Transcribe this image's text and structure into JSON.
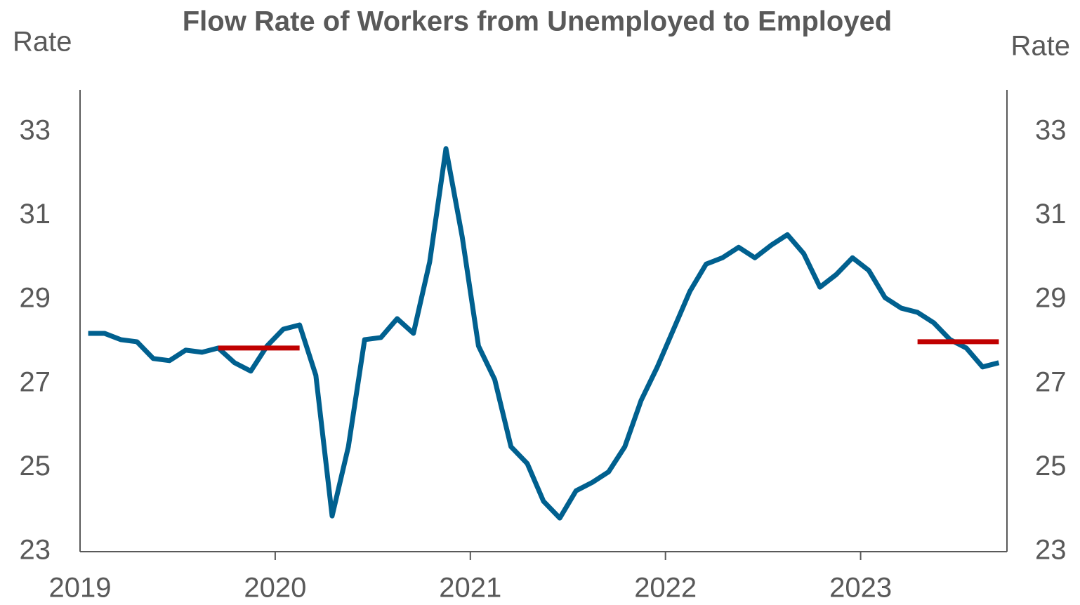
{
  "chart_data": {
    "type": "line",
    "title": "Flow Rate of Workers from Unemployed to Employed",
    "y_label": "Rate",
    "y2_label": "Rate",
    "categories": [
      "2019",
      null,
      null,
      null,
      null,
      null,
      null,
      null,
      null,
      null,
      null,
      null,
      "2020",
      null,
      null,
      null,
      null,
      null,
      null,
      null,
      null,
      null,
      null,
      null,
      "2021",
      null,
      null,
      null,
      null,
      null,
      null,
      null,
      null,
      null,
      null,
      null,
      "2022",
      null,
      null,
      null,
      null,
      null,
      null,
      null,
      null,
      null,
      null,
      null,
      "2023",
      null,
      null,
      null,
      null,
      null,
      null,
      null,
      null
    ],
    "series": [
      {
        "color": "#00608f",
        "values": [
          28.2,
          28.2,
          28.05,
          28.0,
          27.6,
          27.55,
          27.8,
          27.75,
          27.85,
          27.5,
          27.3,
          27.9,
          28.3,
          28.4,
          27.2,
          23.85,
          25.5,
          28.05,
          28.1,
          28.55,
          28.2,
          29.9,
          32.6,
          30.5,
          27.9,
          27.1,
          25.5,
          25.1,
          24.2,
          23.8,
          24.45,
          24.65,
          24.9,
          25.5,
          26.6,
          27.4,
          28.3,
          29.2,
          29.85,
          30.0,
          30.25,
          30.0,
          30.3,
          30.55,
          30.1,
          29.3,
          29.6,
          30.0,
          29.7,
          29.05,
          28.8,
          28.7,
          28.45,
          28.05,
          27.85,
          27.4,
          27.5
        ]
      },
      {
        "color": "#c00000",
        "values": [
          null,
          null,
          null,
          null,
          null,
          null,
          null,
          null,
          27.85,
          27.85,
          27.85,
          27.85,
          27.85,
          27.85,
          null,
          null,
          null,
          null,
          null,
          null,
          null,
          null,
          null,
          null,
          null,
          null,
          null,
          null,
          null,
          null,
          null,
          null,
          null,
          null,
          null,
          null,
          null,
          null,
          null,
          null,
          null,
          null,
          null,
          null,
          null,
          null,
          null,
          null,
          null,
          null,
          null,
          28.0,
          28.0,
          28.0,
          28.0,
          28.0,
          28.0
        ]
      }
    ],
    "ylim": [
      23,
      34
    ],
    "yticks": [
      23,
      25,
      27,
      29,
      31,
      33
    ],
    "y2lim": [
      23,
      34
    ],
    "y2ticks": [
      23,
      25,
      27,
      29,
      31,
      33
    ],
    "grid": false
  }
}
